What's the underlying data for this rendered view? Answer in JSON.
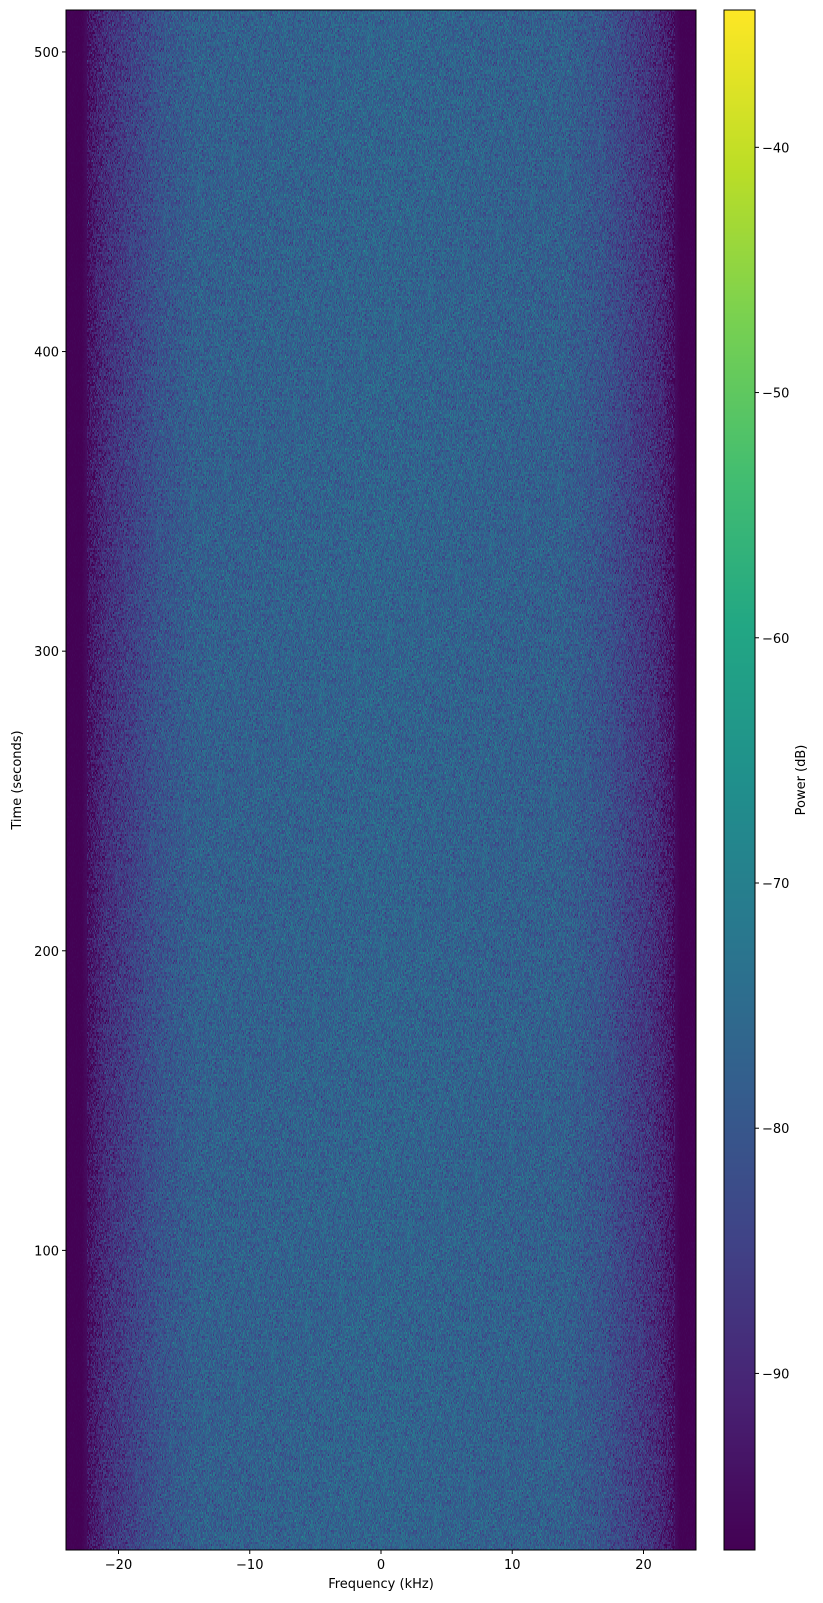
{
  "chart_data": {
    "type": "heatmap",
    "title": "",
    "xlabel": "Frequency (kHz)",
    "ylabel": "Time (seconds)",
    "xlim": [
      -24,
      24
    ],
    "ylim": [
      0,
      514
    ],
    "xticks": [
      "−20",
      "−10",
      "0",
      "10",
      "20"
    ],
    "xtick_values": [
      -20,
      -10,
      0,
      10,
      20
    ],
    "yticks": [
      "100",
      "200",
      "300",
      "400",
      "500"
    ],
    "ytick_values": [
      100,
      200,
      300,
      400,
      500
    ],
    "colormap": "viridis",
    "colorbar": {
      "label": "Power (dB)",
      "range": [
        -97.2,
        -34.4
      ],
      "ticks": [
        "−40",
        "−50",
        "−60",
        "−70",
        "−80",
        "−90"
      ],
      "tick_values": [
        -40,
        -50,
        -60,
        -70,
        -80,
        -90
      ]
    },
    "mean_power_profile": {
      "frequency_khz": [
        -24,
        -22.8,
        -22,
        -21,
        -19,
        -17,
        -14,
        0,
        14,
        17,
        19,
        21,
        22,
        22.8,
        24
      ],
      "power_db": [
        -97,
        -97,
        -93,
        -89,
        -85,
        -81,
        -78,
        -77,
        -78,
        -81,
        -85,
        -89,
        -93,
        -97,
        -97
      ]
    },
    "grid": false
  }
}
